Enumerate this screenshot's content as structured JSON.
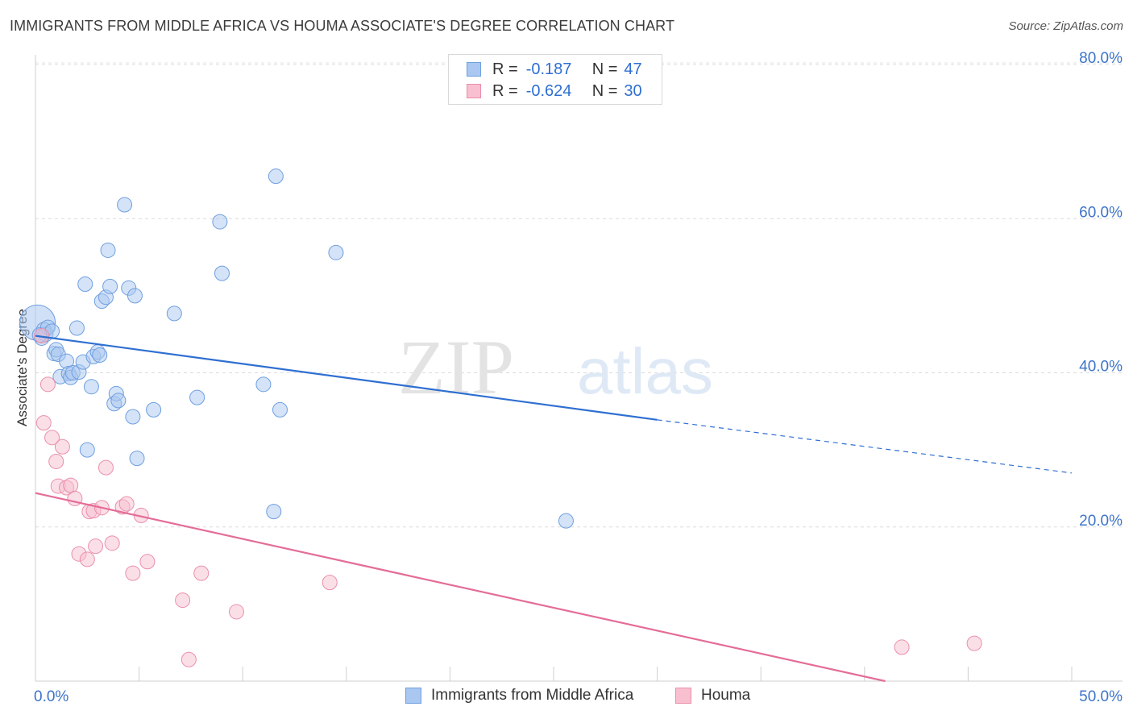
{
  "title": "IMMIGRANTS FROM MIDDLE AFRICA VS HOUMA ASSOCIATE'S DEGREE CORRELATION CHART",
  "source": "Source: ZipAtlas.com",
  "watermark": {
    "zip": "ZIP",
    "atlas": "atlas"
  },
  "legend": {
    "rows": [
      {
        "r_label": "R =",
        "r_value": "-0.187",
        "n_label": "N =",
        "n_value": "47",
        "color": "#a9c7f0",
        "border": "#6f9fe0"
      },
      {
        "r_label": "R =",
        "r_value": "-0.624",
        "n_label": "N =",
        "n_value": "30",
        "color": "#f8bfd0",
        "border": "#ea8fab"
      }
    ]
  },
  "chart_data": {
    "type": "scatter",
    "ylabel": "Associate's Degree",
    "xlim": [
      0,
      50
    ],
    "ylim": [
      0,
      80
    ],
    "x_tick_labels": [
      "0.0%",
      "50.0%"
    ],
    "y_ticks": [
      20,
      40,
      60,
      80
    ],
    "y_tick_labels": [
      "20.0%",
      "40.0%",
      "60.0%",
      "80.0%"
    ],
    "grid": true,
    "series": [
      {
        "name": "Immigrants from Middle Africa",
        "color": "#a9c7f0",
        "stroke": "#6f9fe0",
        "line_color": "#2f6fd1",
        "trend": {
          "x0": 0,
          "y0": 44.8,
          "x1": 30,
          "y1": 33.9,
          "x_dash_end": 50,
          "y_dash_end": 27.0
        },
        "points": [
          [
            0.1,
            46.5
          ],
          [
            0.3,
            44.5
          ],
          [
            0.4,
            45.6
          ],
          [
            0.5,
            45.0
          ],
          [
            0.6,
            45.9
          ],
          [
            0.8,
            45.4
          ],
          [
            0.9,
            42.5
          ],
          [
            1.0,
            43.0
          ],
          [
            1.1,
            42.4
          ],
          [
            1.2,
            39.5
          ],
          [
            1.5,
            41.5
          ],
          [
            1.6,
            39.9
          ],
          [
            1.7,
            39.4
          ],
          [
            1.8,
            40.0
          ],
          [
            2.0,
            45.8
          ],
          [
            2.1,
            40.1
          ],
          [
            2.3,
            41.4
          ],
          [
            2.5,
            30.0
          ],
          [
            2.7,
            38.2
          ],
          [
            2.8,
            42.1
          ],
          [
            3.0,
            42.7
          ],
          [
            3.1,
            42.3
          ],
          [
            3.2,
            49.3
          ],
          [
            3.4,
            49.8
          ],
          [
            2.4,
            51.5
          ],
          [
            3.5,
            55.9
          ],
          [
            3.6,
            51.2
          ],
          [
            3.8,
            36.0
          ],
          [
            3.9,
            37.3
          ],
          [
            4.0,
            36.4
          ],
          [
            4.3,
            61.8
          ],
          [
            4.5,
            51.0
          ],
          [
            4.7,
            34.3
          ],
          [
            4.8,
            50.0
          ],
          [
            4.9,
            28.9
          ],
          [
            5.7,
            35.2
          ],
          [
            6.7,
            47.7
          ],
          [
            7.8,
            36.8
          ],
          [
            8.9,
            59.6
          ],
          [
            9.0,
            52.9
          ],
          [
            11.0,
            38.5
          ],
          [
            11.5,
            22.0
          ],
          [
            11.6,
            65.5
          ],
          [
            11.8,
            35.2
          ],
          [
            14.5,
            55.6
          ],
          [
            25.6,
            20.8
          ],
          [
            0.2,
            44.9
          ]
        ]
      },
      {
        "name": "Houma",
        "color": "#f8bfd0",
        "stroke": "#ea8fab",
        "line_color": "#e46d98",
        "trend": {
          "x0": 0,
          "y0": 24.4,
          "x1": 41.0,
          "y1": 0
        },
        "points": [
          [
            0.3,
            44.8
          ],
          [
            0.4,
            33.5
          ],
          [
            0.6,
            38.5
          ],
          [
            0.8,
            31.6
          ],
          [
            1.0,
            28.5
          ],
          [
            1.1,
            25.3
          ],
          [
            1.3,
            30.4
          ],
          [
            1.5,
            25.1
          ],
          [
            1.7,
            25.4
          ],
          [
            1.9,
            23.7
          ],
          [
            2.1,
            16.5
          ],
          [
            2.5,
            15.8
          ],
          [
            2.6,
            22.0
          ],
          [
            2.8,
            22.1
          ],
          [
            2.9,
            17.5
          ],
          [
            3.2,
            22.5
          ],
          [
            3.4,
            27.7
          ],
          [
            3.7,
            17.9
          ],
          [
            4.2,
            22.6
          ],
          [
            4.4,
            23.0
          ],
          [
            4.7,
            14.0
          ],
          [
            5.1,
            21.5
          ],
          [
            5.4,
            15.5
          ],
          [
            7.1,
            10.5
          ],
          [
            7.4,
            2.8
          ],
          [
            8.0,
            14.0
          ],
          [
            9.7,
            9.0
          ],
          [
            14.2,
            12.8
          ],
          [
            41.8,
            4.4
          ],
          [
            45.3,
            4.9
          ]
        ]
      }
    ]
  },
  "bottom_legend": [
    {
      "label": "Immigrants from Middle Africa",
      "color": "#a9c7f0",
      "border": "#6f9fe0"
    },
    {
      "label": "Houma",
      "color": "#f8bfd0",
      "border": "#ea8fab"
    }
  ]
}
